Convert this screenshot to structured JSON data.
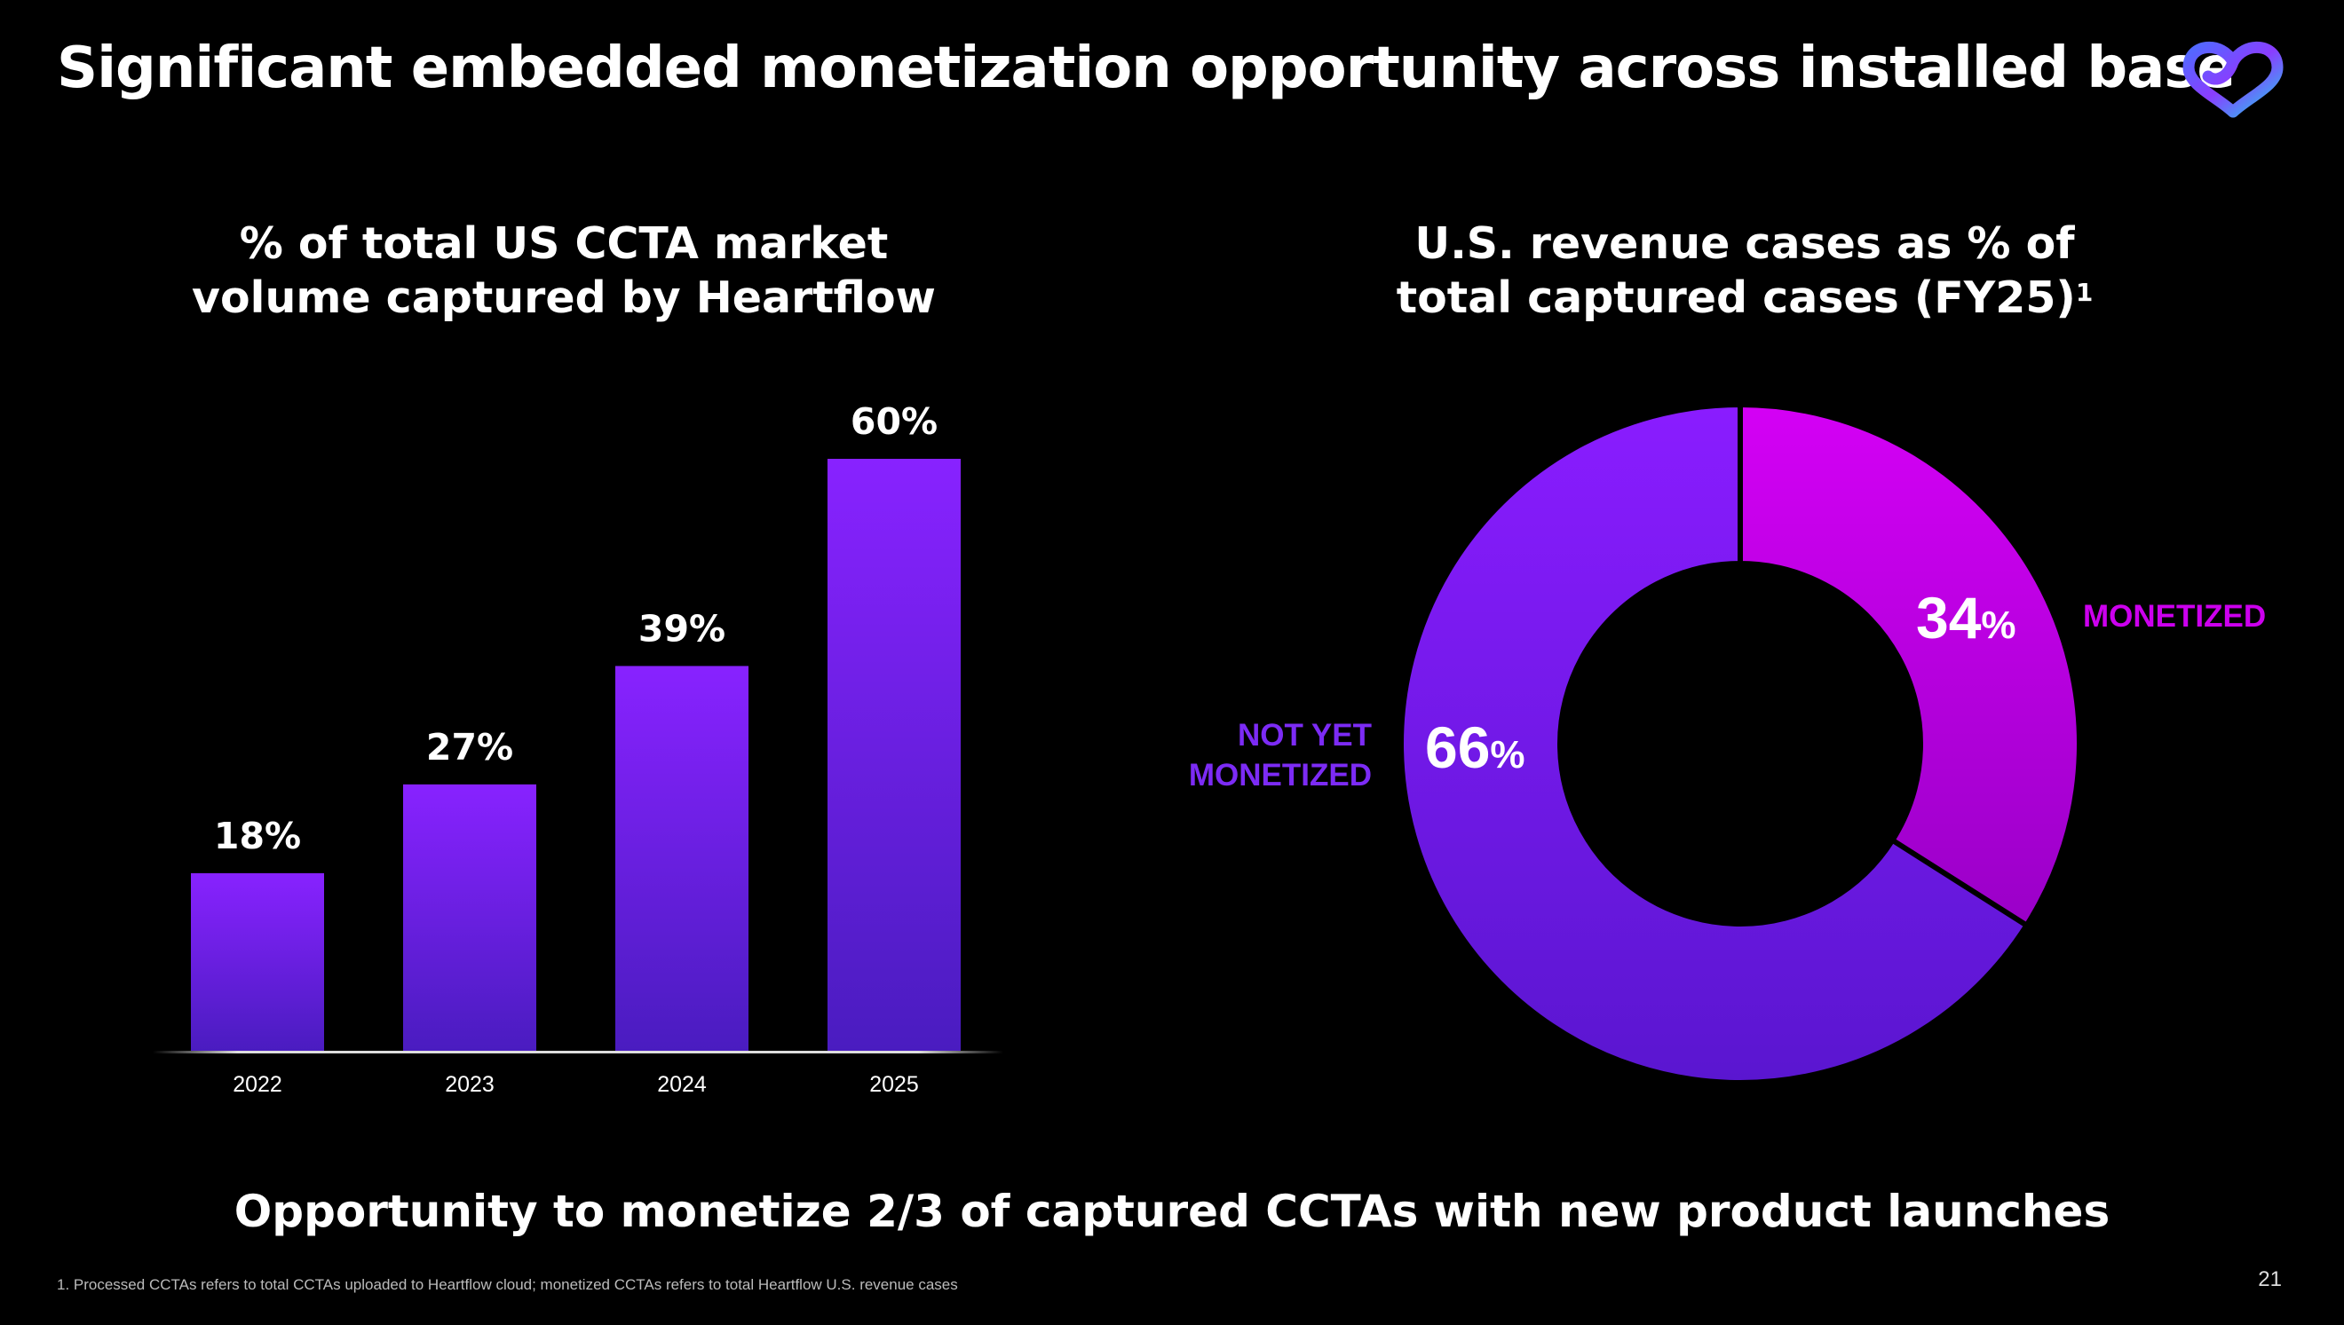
{
  "page": {
    "title": "Significant embedded monetization opportunity across installed base",
    "bottom_message": "Opportunity to monetize 2/3 of captured CCTAs with new product launches",
    "footnote": "1. Processed CCTAs refers to total CCTAs uploaded to Heartflow cloud; monetized CCTAs refers to total Heartflow U.S. revenue cases",
    "page_number": "21",
    "logo_icon": "heartflow-logo-icon"
  },
  "bar_chart": {
    "title_line1": "% of total US CCTA market",
    "title_line2": "volume captured by Heartflow"
  },
  "pie_chart": {
    "title_line1": "U.S. revenue cases as % of",
    "title_line2": "total captured cases (FY25)",
    "title_sup": "1",
    "monetized_label": "MONETIZED",
    "not_yet_label_line1": "NOT YET",
    "not_yet_label_line2": "MONETIZED",
    "monetized_value": "34",
    "not_yet_value": "66",
    "percent_sign": "%"
  },
  "chart_data": [
    {
      "type": "bar",
      "title": "% of total US CCTA market volume captured by Heartflow",
      "categories": [
        "2022",
        "2023",
        "2024",
        "2025"
      ],
      "values": [
        18,
        27,
        39,
        60
      ],
      "data_labels": [
        "18%",
        "27%",
        "39%",
        "60%"
      ],
      "ylim": [
        0,
        60
      ],
      "grid": false,
      "colors": {
        "bar_top": "#8822ff",
        "bar_bottom": "#4a1cc0"
      }
    },
    {
      "type": "pie",
      "title": "U.S. revenue cases as % of total captured cases (FY25)",
      "labels": [
        "MONETIZED",
        "NOT YET MONETIZED"
      ],
      "values": [
        34,
        66
      ],
      "donut": true,
      "colors": {
        "monetized": "#cc00ee",
        "not_yet_monetized": "#7a1cf5"
      }
    }
  ]
}
